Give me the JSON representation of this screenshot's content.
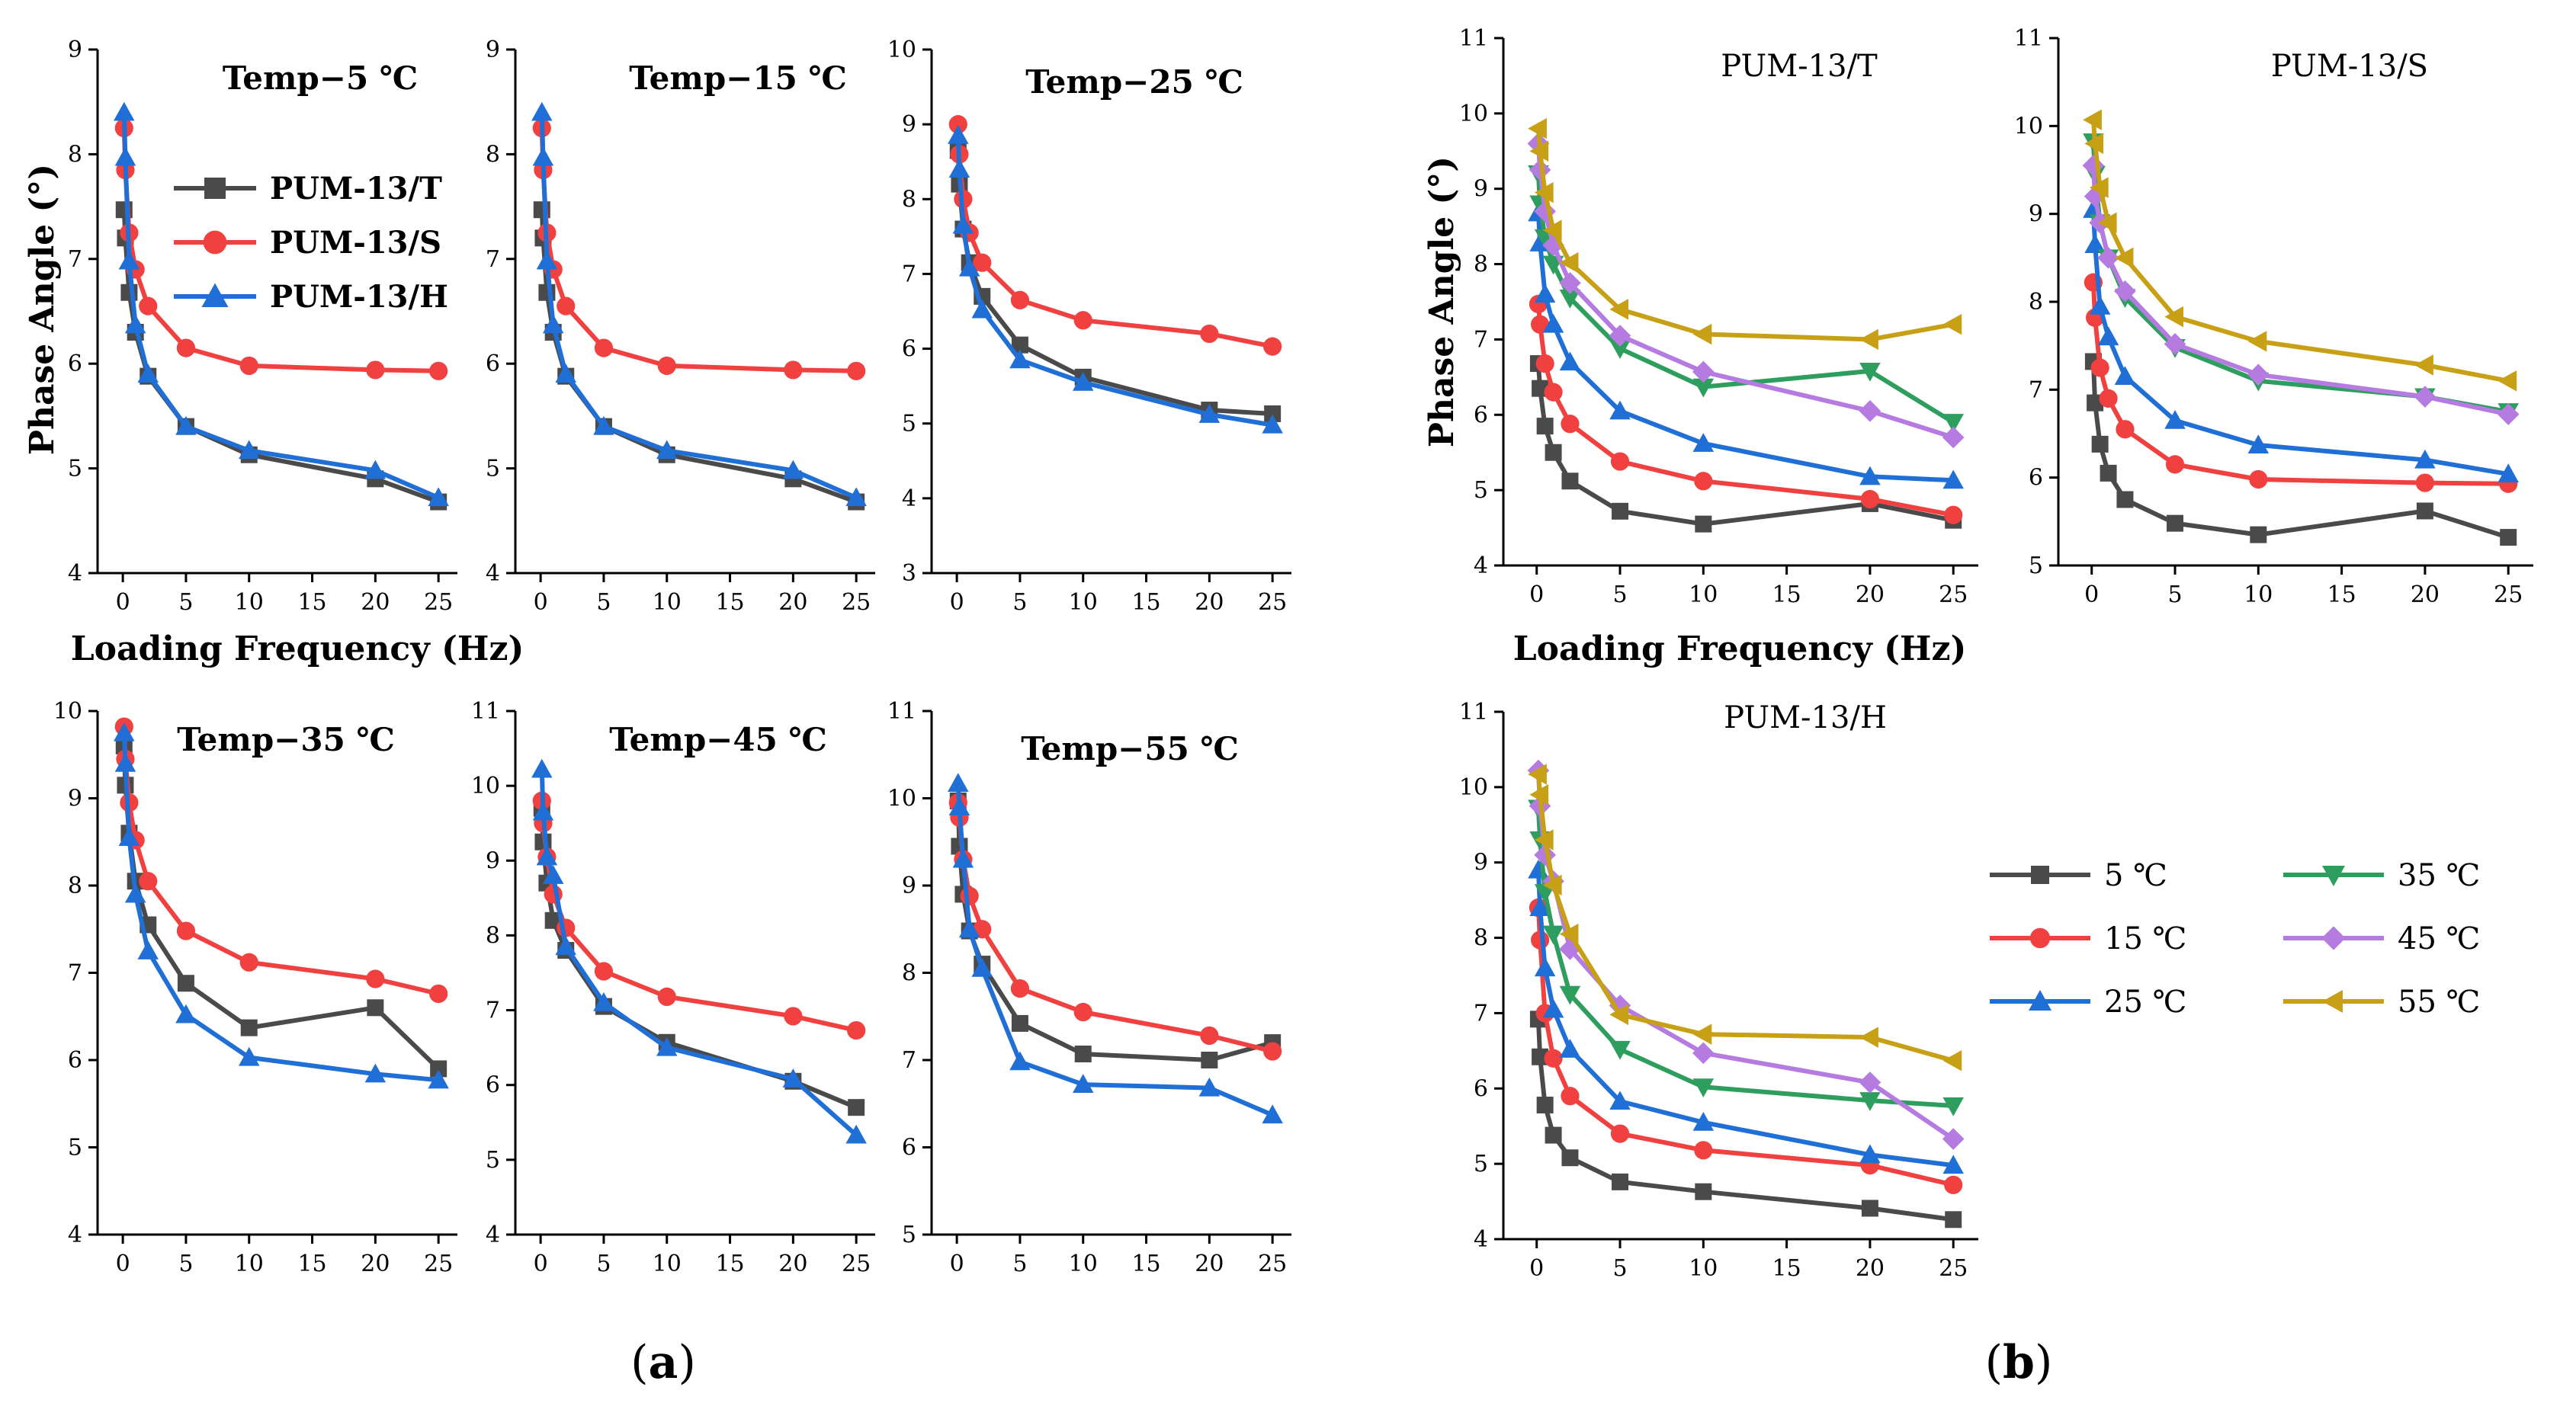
{
  "colors": {
    "PUM-13/T": "#4a4a4a",
    "PUM-13/S": "#f04040",
    "PUM-13/H": "#1f6fd6",
    "5 ℃": "#4a4a4a",
    "15 ℃": "#f04040",
    "25 ℃": "#1f6fd6",
    "35 ℃": "#2e9e5e",
    "45 ℃": "#b57be0",
    "55 ℃": "#c8a016"
  },
  "markers": {
    "PUM-13/T": "square",
    "PUM-13/S": "circle",
    "PUM-13/H": "triangle-up",
    "5 ℃": "square",
    "15 ℃": "circle",
    "25 ℃": "triangle-up",
    "35 ℃": "triangle-down",
    "45 ℃": "diamond",
    "55 ℃": "triangle-left"
  },
  "labels": {
    "caption_a": "a",
    "caption_b": "b",
    "ylabel": "Phase Angle (°)",
    "xlabel": "Loading Frequency (Hz)",
    "legend_a": [
      "PUM-13/T",
      "PUM-13/S",
      "PUM-13/H"
    ],
    "legend_b": [
      "5 ℃",
      "15 ℃",
      "25 ℃",
      "35 ℃",
      "45 ℃",
      "55 ℃"
    ]
  },
  "chart_data": [
    {
      "id": "a1",
      "type": "line",
      "title": "Temp−5 ℃",
      "xlabel": "",
      "ylabel": "",
      "x": [
        0.1,
        0.2,
        0.5,
        1,
        2,
        5,
        10,
        20,
        25
      ],
      "xticks": [
        0,
        5,
        10,
        15,
        20,
        25
      ],
      "xlim": [
        -2,
        26.5
      ],
      "yticks": [
        4,
        5,
        6,
        7,
        8,
        9
      ],
      "ylim": [
        4,
        9
      ],
      "series": [
        {
          "name": "PUM-13/T",
          "values": [
            7.47,
            7.2,
            6.68,
            6.3,
            5.88,
            5.4,
            5.13,
            4.9,
            4.68
          ]
        },
        {
          "name": "PUM-13/S",
          "values": [
            8.25,
            7.85,
            7.25,
            6.9,
            6.55,
            6.15,
            5.98,
            5.94,
            5.93
          ]
        },
        {
          "name": "PUM-13/H",
          "values": [
            8.4,
            7.97,
            6.98,
            6.37,
            5.9,
            5.4,
            5.17,
            4.98,
            4.72
          ]
        }
      ]
    },
    {
      "id": "a2",
      "type": "line",
      "title": "Temp−15 ℃",
      "xlabel": "",
      "ylabel": "",
      "x": [
        0.1,
        0.2,
        0.5,
        1,
        2,
        5,
        10,
        20,
        25
      ],
      "xticks": [
        0,
        5,
        10,
        15,
        20,
        25
      ],
      "xlim": [
        -2,
        26.5
      ],
      "yticks": [
        4,
        5,
        6,
        7,
        8,
        9
      ],
      "ylim": [
        4,
        9
      ],
      "series": [
        {
          "name": "PUM-13/T",
          "values": [
            7.47,
            7.2,
            6.68,
            6.3,
            5.88,
            5.4,
            5.13,
            4.9,
            4.68
          ]
        },
        {
          "name": "PUM-13/S",
          "values": [
            8.25,
            7.85,
            7.25,
            6.9,
            6.55,
            6.15,
            5.98,
            5.94,
            5.93
          ]
        },
        {
          "name": "PUM-13/H",
          "values": [
            8.4,
            7.97,
            6.98,
            6.37,
            5.9,
            5.4,
            5.17,
            4.98,
            4.72
          ]
        }
      ]
    },
    {
      "id": "a3",
      "type": "line",
      "title": "Temp−25 ℃",
      "xlabel": "",
      "ylabel": "",
      "x": [
        0.1,
        0.2,
        0.5,
        1,
        2,
        5,
        10,
        20,
        25
      ],
      "xticks": [
        0,
        5,
        10,
        15,
        20,
        25
      ],
      "xlim": [
        -2,
        26.5
      ],
      "yticks": [
        3,
        4,
        5,
        6,
        7,
        8,
        9,
        10
      ],
      "ylim": [
        3,
        10
      ],
      "series": [
        {
          "name": "PUM-13/T",
          "values": [
            8.65,
            8.2,
            7.6,
            7.15,
            6.7,
            6.05,
            5.62,
            5.18,
            5.13
          ]
        },
        {
          "name": "PUM-13/S",
          "values": [
            9.0,
            8.6,
            8.0,
            7.55,
            7.15,
            6.65,
            6.38,
            6.2,
            6.03
          ]
        },
        {
          "name": "PUM-13/H",
          "values": [
            8.85,
            8.4,
            7.65,
            7.08,
            6.52,
            5.85,
            5.55,
            5.12,
            4.98
          ]
        }
      ]
    },
    {
      "id": "a4",
      "type": "line",
      "title": "Temp−35 ℃",
      "xlabel": "",
      "ylabel": "",
      "x": [
        0.1,
        0.2,
        0.5,
        1,
        2,
        5,
        10,
        20,
        25
      ],
      "xticks": [
        0,
        5,
        10,
        15,
        20,
        25
      ],
      "xlim": [
        -2,
        26.5
      ],
      "yticks": [
        4,
        5,
        6,
        7,
        8,
        9,
        10
      ],
      "ylim": [
        4,
        10
      ],
      "series": [
        {
          "name": "PUM-13/T",
          "values": [
            9.6,
            9.15,
            8.6,
            8.05,
            7.55,
            6.88,
            6.37,
            6.6,
            5.9
          ]
        },
        {
          "name": "PUM-13/S",
          "values": [
            9.82,
            9.45,
            8.95,
            8.52,
            8.05,
            7.48,
            7.12,
            6.93,
            6.76
          ]
        },
        {
          "name": "PUM-13/H",
          "values": [
            9.75,
            9.4,
            8.55,
            7.9,
            7.25,
            6.52,
            6.03,
            5.84,
            5.77
          ]
        }
      ]
    },
    {
      "id": "a5",
      "type": "line",
      "title": "Temp−45 ℃",
      "xlabel": "",
      "ylabel": "",
      "x": [
        0.1,
        0.2,
        0.5,
        1,
        2,
        5,
        10,
        20,
        25
      ],
      "xticks": [
        0,
        5,
        10,
        15,
        20,
        25
      ],
      "xlim": [
        -2,
        26.5
      ],
      "yticks": [
        4,
        5,
        6,
        7,
        8,
        9,
        10,
        11
      ],
      "ylim": [
        4,
        11
      ],
      "series": [
        {
          "name": "PUM-13/T",
          "values": [
            9.7,
            9.25,
            8.7,
            8.2,
            7.8,
            7.05,
            6.57,
            6.05,
            5.7
          ]
        },
        {
          "name": "PUM-13/S",
          "values": [
            9.8,
            9.5,
            9.05,
            8.55,
            8.1,
            7.52,
            7.18,
            6.92,
            6.73
          ]
        },
        {
          "name": "PUM-13/H",
          "values": [
            10.22,
            9.65,
            9.05,
            8.8,
            7.85,
            7.1,
            6.5,
            6.08,
            5.33
          ]
        }
      ]
    },
    {
      "id": "a6",
      "type": "line",
      "title": "Temp−55 ℃",
      "xlabel": "",
      "ylabel": "",
      "x": [
        0.1,
        0.2,
        0.5,
        1,
        2,
        5,
        10,
        20,
        25
      ],
      "xticks": [
        0,
        5,
        10,
        15,
        20,
        25
      ],
      "xlim": [
        -2,
        26.5
      ],
      "yticks": [
        5,
        6,
        7,
        8,
        9,
        10,
        11
      ],
      "ylim": [
        5,
        11
      ],
      "series": [
        {
          "name": "PUM-13/T",
          "values": [
            9.97,
            9.45,
            8.9,
            8.48,
            8.1,
            7.42,
            7.07,
            7.0,
            7.2
          ]
        },
        {
          "name": "PUM-13/S",
          "values": [
            9.95,
            9.78,
            9.3,
            8.88,
            8.5,
            7.82,
            7.55,
            7.28,
            7.1
          ]
        },
        {
          "name": "PUM-13/H",
          "values": [
            10.17,
            9.9,
            9.3,
            8.5,
            8.05,
            6.98,
            6.72,
            6.68,
            6.37
          ]
        }
      ]
    },
    {
      "id": "b1",
      "type": "line",
      "title": "PUM-13/T",
      "xlabel": "",
      "ylabel": "",
      "x": [
        0.1,
        0.2,
        0.5,
        1,
        2,
        5,
        10,
        20,
        25
      ],
      "xticks": [
        0,
        5,
        10,
        15,
        20,
        25
      ],
      "xlim": [
        -2,
        26.5
      ],
      "yticks": [
        4,
        5,
        6,
        7,
        8,
        9,
        10,
        11
      ],
      "ylim": [
        4,
        11
      ],
      "series": [
        {
          "name": "5 ℃",
          "values": [
            6.68,
            6.35,
            5.85,
            5.5,
            5.12,
            4.72,
            4.55,
            4.82,
            4.6
          ]
        },
        {
          "name": "15 ℃",
          "values": [
            7.47,
            7.2,
            6.68,
            6.3,
            5.88,
            5.38,
            5.12,
            4.88,
            4.67
          ]
        },
        {
          "name": "25 ℃",
          "values": [
            8.68,
            8.28,
            7.6,
            7.2,
            6.7,
            6.05,
            5.62,
            5.18,
            5.13
          ]
        },
        {
          "name": "35 ℃",
          "values": [
            9.2,
            8.8,
            8.35,
            8.0,
            7.55,
            6.88,
            6.37,
            6.58,
            5.9
          ]
        },
        {
          "name": "45 ℃",
          "values": [
            9.6,
            9.25,
            8.7,
            8.25,
            7.75,
            7.05,
            6.57,
            6.05,
            5.7
          ]
        },
        {
          "name": "55 ℃",
          "values": [
            9.8,
            9.5,
            8.95,
            8.45,
            8.02,
            7.4,
            7.07,
            7.0,
            7.2
          ]
        }
      ]
    },
    {
      "id": "b2",
      "type": "line",
      "title": "PUM-13/S",
      "xlabel": "",
      "ylabel": "",
      "x": [
        0.1,
        0.2,
        0.5,
        1,
        2,
        5,
        10,
        20,
        25
      ],
      "xticks": [
        0,
        5,
        10,
        15,
        20,
        25
      ],
      "xlim": [
        -2,
        26.5
      ],
      "yticks": [
        5,
        6,
        7,
        8,
        9,
        10,
        11
      ],
      "ylim": [
        5,
        11
      ],
      "series": [
        {
          "name": "5 ℃",
          "values": [
            7.32,
            6.85,
            6.38,
            6.05,
            5.75,
            5.48,
            5.35,
            5.62,
            5.32
          ]
        },
        {
          "name": "15 ℃",
          "values": [
            8.22,
            7.82,
            7.25,
            6.9,
            6.55,
            6.15,
            5.98,
            5.94,
            5.93
          ]
        },
        {
          "name": "25 ℃",
          "values": [
            9.05,
            8.65,
            7.95,
            7.6,
            7.15,
            6.65,
            6.37,
            6.2,
            6.04
          ]
        },
        {
          "name": "35 ℃",
          "values": [
            9.82,
            9.45,
            8.9,
            8.5,
            8.05,
            7.48,
            7.1,
            6.92,
            6.75
          ]
        },
        {
          "name": "45 ℃",
          "values": [
            9.55,
            9.2,
            8.9,
            8.5,
            8.12,
            7.52,
            7.17,
            6.92,
            6.72
          ]
        },
        {
          "name": "55 ℃",
          "values": [
            10.07,
            9.8,
            9.3,
            8.9,
            8.5,
            7.83,
            7.55,
            7.28,
            7.1
          ]
        }
      ]
    },
    {
      "id": "b3",
      "type": "line",
      "title": "PUM-13/H",
      "xlabel": "",
      "ylabel": "",
      "x": [
        0.1,
        0.2,
        0.5,
        1,
        2,
        5,
        10,
        20,
        25
      ],
      "xticks": [
        0,
        5,
        10,
        15,
        20,
        25
      ],
      "xlim": [
        -2,
        26.5
      ],
      "yticks": [
        4,
        5,
        6,
        7,
        8,
        9,
        10,
        11
      ],
      "ylim": [
        4,
        11
      ],
      "series": [
        {
          "name": "5 ℃",
          "values": [
            6.92,
            6.42,
            5.78,
            5.38,
            5.08,
            4.76,
            4.63,
            4.41,
            4.26
          ]
        },
        {
          "name": "15 ℃",
          "values": [
            8.4,
            7.97,
            7.0,
            6.4,
            5.9,
            5.4,
            5.18,
            4.98,
            4.72
          ]
        },
        {
          "name": "25 ℃",
          "values": [
            8.9,
            8.4,
            7.6,
            7.05,
            6.52,
            5.83,
            5.55,
            5.12,
            4.98
          ]
        },
        {
          "name": "35 ℃",
          "values": [
            9.72,
            9.3,
            8.6,
            8.05,
            7.25,
            6.52,
            6.02,
            5.84,
            5.77
          ]
        },
        {
          "name": "45 ℃",
          "values": [
            10.22,
            9.75,
            9.1,
            8.75,
            7.85,
            7.1,
            6.47,
            6.08,
            5.33
          ]
        },
        {
          "name": "55 ℃",
          "values": [
            10.17,
            9.9,
            9.3,
            8.7,
            8.05,
            6.98,
            6.72,
            6.68,
            6.37
          ]
        }
      ]
    }
  ]
}
